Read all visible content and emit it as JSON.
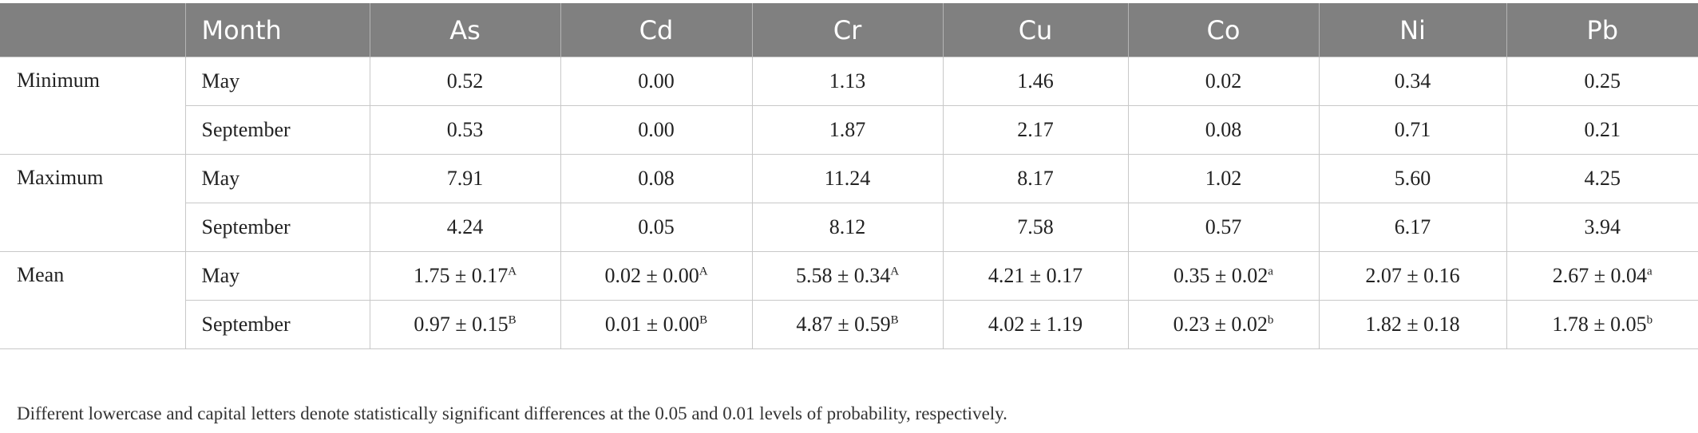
{
  "table": {
    "columns": [
      "",
      "Month",
      "As",
      "Cd",
      "Cr",
      "Cu",
      "Co",
      "Ni",
      "Pb"
    ],
    "groups": [
      {
        "statistic": "Minimum",
        "rows": [
          {
            "month": "May",
            "values": [
              {
                "v": "0.52"
              },
              {
                "v": "0.00"
              },
              {
                "v": "1.13"
              },
              {
                "v": "1.46"
              },
              {
                "v": "0.02"
              },
              {
                "v": "0.34"
              },
              {
                "v": "0.25"
              }
            ]
          },
          {
            "month": "September",
            "values": [
              {
                "v": "0.53"
              },
              {
                "v": "0.00"
              },
              {
                "v": "1.87"
              },
              {
                "v": "2.17"
              },
              {
                "v": "0.08"
              },
              {
                "v": "0.71"
              },
              {
                "v": "0.21"
              }
            ]
          }
        ]
      },
      {
        "statistic": "Maximum",
        "rows": [
          {
            "month": "May",
            "values": [
              {
                "v": "7.91"
              },
              {
                "v": "0.08"
              },
              {
                "v": "11.24"
              },
              {
                "v": "8.17"
              },
              {
                "v": "1.02"
              },
              {
                "v": "5.60"
              },
              {
                "v": "4.25"
              }
            ]
          },
          {
            "month": "September",
            "values": [
              {
                "v": "4.24"
              },
              {
                "v": "0.05"
              },
              {
                "v": "8.12"
              },
              {
                "v": "7.58"
              },
              {
                "v": "0.57"
              },
              {
                "v": "6.17"
              },
              {
                "v": "3.94"
              }
            ]
          }
        ]
      },
      {
        "statistic": "Mean",
        "rows": [
          {
            "month": "May",
            "values": [
              {
                "v": "1.75 ± 0.17",
                "sup": "A"
              },
              {
                "v": "0.02 ± 0.00",
                "sup": "A"
              },
              {
                "v": "5.58 ± 0.34",
                "sup": "A"
              },
              {
                "v": "4.21 ± 0.17"
              },
              {
                "v": "0.35 ± 0.02",
                "sup": "a"
              },
              {
                "v": "2.07 ± 0.16"
              },
              {
                "v": "2.67 ± 0.04",
                "sup": "a"
              }
            ]
          },
          {
            "month": "September",
            "values": [
              {
                "v": "0.97 ± 0.15",
                "sup": "B"
              },
              {
                "v": "0.01 ± 0.00",
                "sup": "B"
              },
              {
                "v": "4.87 ± 0.59",
                "sup": "B"
              },
              {
                "v": "4.02 ± 1.19"
              },
              {
                "v": "0.23 ± 0.02",
                "sup": "b"
              },
              {
                "v": "1.82 ± 0.18"
              },
              {
                "v": "1.78 ± 0.05",
                "sup": "b"
              }
            ]
          }
        ]
      }
    ]
  },
  "footnote": "Different lowercase and capital letters denote statistically significant differences at the 0.05 and 0.01 levels of probability, respectively."
}
